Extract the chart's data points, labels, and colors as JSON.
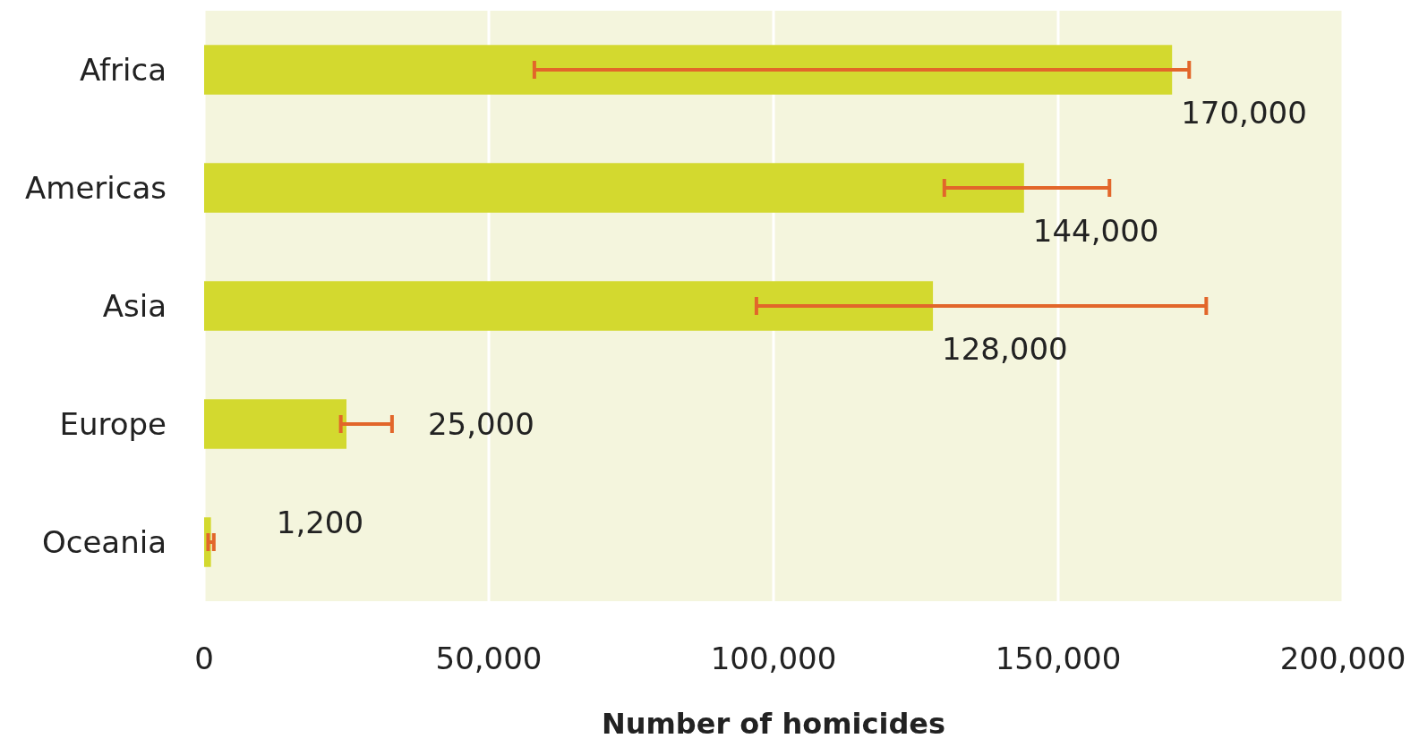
{
  "chart_data": {
    "type": "bar",
    "orientation": "horizontal",
    "xlabel": "Number of homicides",
    "categories": [
      "Africa",
      "Americas",
      "Asia",
      "Europe",
      "Oceania"
    ],
    "values": [
      170000,
      144000,
      128000,
      25000,
      1200
    ],
    "errors": [
      [
        58000,
        173000
      ],
      [
        130000,
        159000
      ],
      [
        97000,
        176000
      ],
      [
        24000,
        33000
      ],
      [
        700,
        1700
      ]
    ],
    "color": "#d3d92f",
    "xlim": [
      0,
      200000
    ],
    "xticks": [
      {
        "value": 0,
        "label": "0"
      },
      {
        "value": 50000,
        "label": "50,000"
      },
      {
        "value": 100000,
        "label": "100,000"
      },
      {
        "value": 150000,
        "label": "150,000"
      },
      {
        "value": 200000,
        "label": "200,000"
      }
    ],
    "grid": "x",
    "value_labels": [
      "170,000",
      "144,000",
      "128,000",
      "25,000",
      "1,200"
    ]
  }
}
